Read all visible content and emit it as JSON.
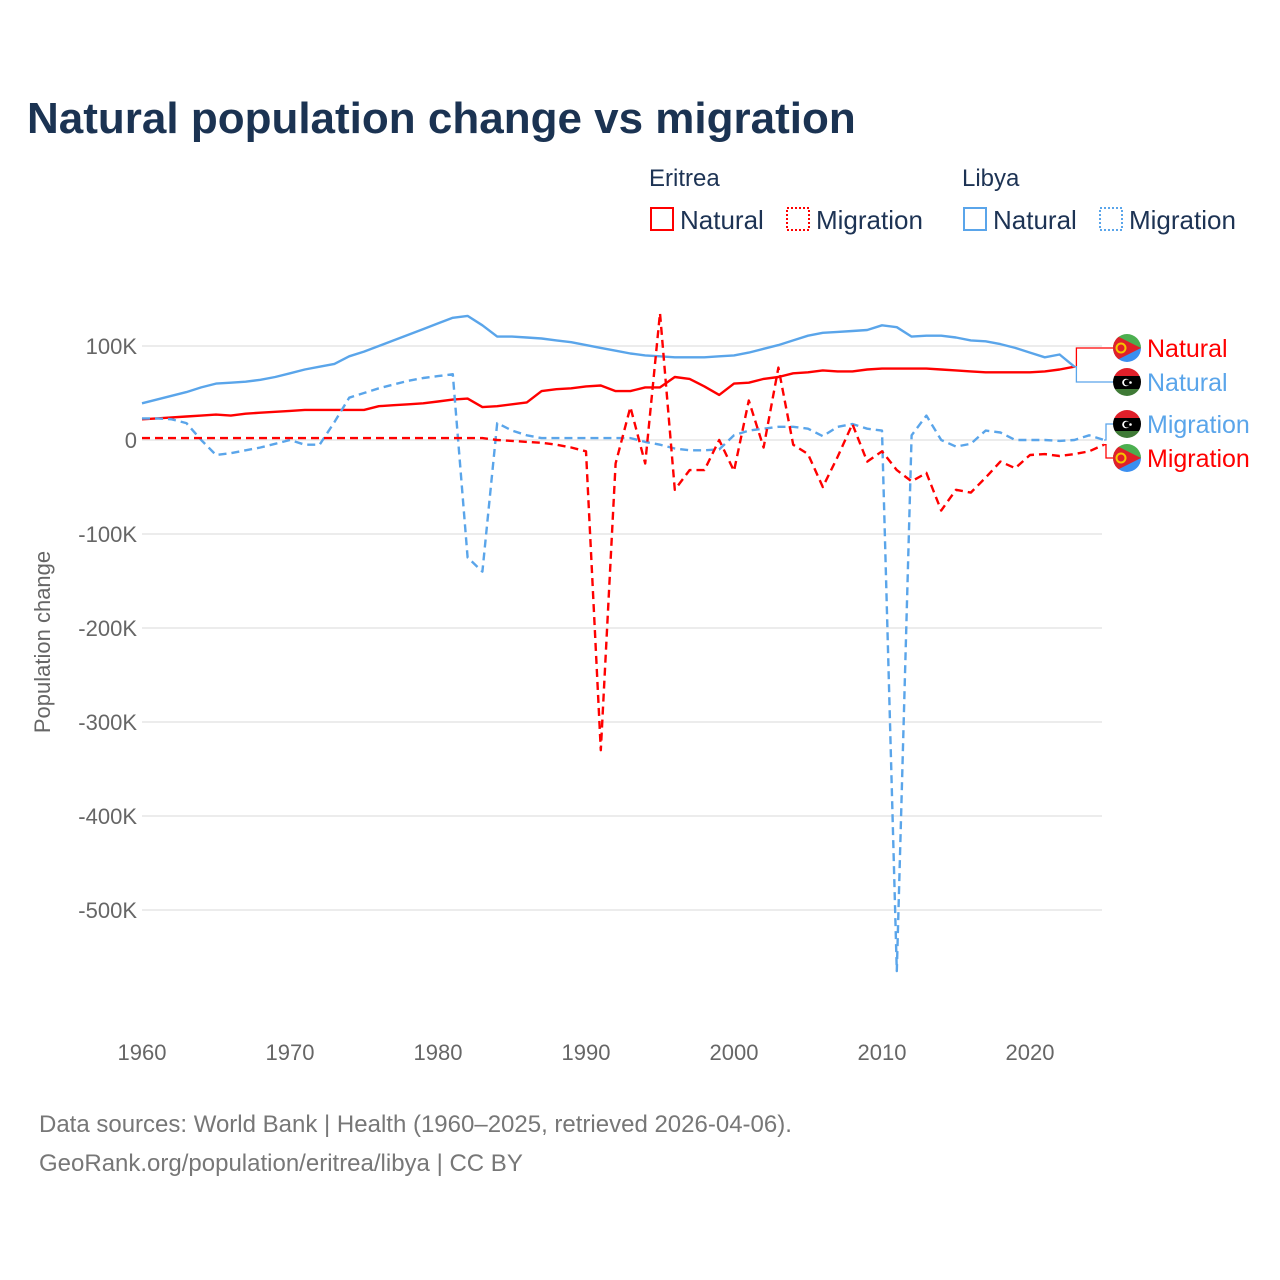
{
  "title": "Natural population change vs migration",
  "source_line1": "Data sources: World Bank | Health (1960–2025, retrieved 2026-04-06).",
  "source_line2": "GeoRank.org/population/eritrea/libya | CC BY",
  "legend": {
    "groups": [
      {
        "name": "Eritrea",
        "items": [
          "Natural",
          "Migration"
        ],
        "color": "#ff0000"
      },
      {
        "name": "Libya",
        "items": [
          "Natural",
          "Migration"
        ],
        "color": "#5aa5ea"
      }
    ]
  },
  "chart_data": {
    "type": "line",
    "title": "Natural population change vs migration",
    "xlabel": "",
    "ylabel": "Population change",
    "xlim": [
      1960,
      2025
    ],
    "ylim": [
      -606000,
      150000
    ],
    "grid": true,
    "legend_position": "top-right",
    "x_ticks": [
      1960,
      1970,
      1980,
      1990,
      2000,
      2010,
      2020
    ],
    "x_tick_labels": [
      "1960",
      "1970",
      "1980",
      "1990",
      "2000",
      "2010",
      "2020"
    ],
    "y_ticks": [
      100000,
      0,
      -100000,
      -200000,
      -300000,
      -400000,
      -500000
    ],
    "y_tick_labels": [
      "100K",
      "0",
      "-100K",
      "-200K",
      "-300K",
      "-400K",
      "-500K"
    ],
    "series": [
      {
        "name": "Eritrea Natural",
        "label": "Natural",
        "country": "Eritrea",
        "color": "#ff0000",
        "dash": false,
        "start_year": 1960,
        "values_k": [
          22,
          23,
          24,
          25,
          26,
          27,
          26,
          28,
          29,
          30,
          31,
          32,
          32,
          32,
          32,
          32,
          36,
          37,
          38,
          39,
          41,
          43,
          44,
          35,
          36,
          38,
          40,
          52,
          54,
          55,
          57,
          58,
          52,
          52,
          56,
          56,
          67,
          65,
          57,
          48,
          60,
          61,
          65,
          67,
          71,
          72,
          74,
          73,
          73,
          75,
          76,
          76,
          76,
          76,
          75,
          74,
          73,
          72,
          72,
          72,
          72,
          73,
          75,
          78
        ]
      },
      {
        "name": "Libya Natural",
        "label": "Natural",
        "country": "Libya",
        "color": "#5aa5ea",
        "dash": false,
        "start_year": 1960,
        "values_k": [
          39,
          43,
          47,
          51,
          56,
          60,
          61,
          62,
          64,
          67,
          71,
          75,
          78,
          81,
          89,
          94,
          100,
          106,
          112,
          118,
          124,
          130,
          132,
          122,
          110,
          110,
          109,
          108,
          106,
          104,
          101,
          98,
          95,
          92,
          90,
          89,
          88,
          88,
          88,
          89,
          90,
          93,
          97,
          101,
          106,
          111,
          114,
          115,
          116,
          117,
          122,
          120,
          110,
          111,
          111,
          109,
          106,
          105,
          102,
          98,
          93,
          88,
          91,
          78
        ]
      },
      {
        "name": "Libya Migration",
        "label": "Migration",
        "country": "Libya",
        "color": "#5aa5ea",
        "dash": true,
        "start_year": 1960,
        "values_k": [
          23,
          23,
          22,
          18,
          0,
          -16,
          -14,
          -11,
          -8,
          -4,
          0,
          -5,
          -5,
          19,
          45,
          50,
          55,
          59,
          63,
          66,
          68,
          70,
          -125,
          -140,
          18,
          10,
          5,
          2,
          2,
          2,
          2,
          2,
          2,
          2,
          -2,
          -5,
          -9,
          -11,
          -11,
          -10,
          5,
          10,
          12,
          14,
          14,
          12,
          4,
          14,
          17,
          12,
          10,
          -565,
          5,
          26,
          0,
          -7,
          -4,
          10,
          8,
          0,
          0,
          0,
          -1,
          0,
          5,
          0
        ]
      },
      {
        "name": "Eritrea Migration",
        "label": "Migration",
        "country": "Eritrea",
        "color": "#ff0000",
        "dash": true,
        "start_year": 1960,
        "values_k": [
          2,
          2,
          2,
          2,
          2,
          2,
          2,
          2,
          2,
          2,
          2,
          2,
          2,
          2,
          2,
          2,
          2,
          2,
          2,
          2,
          2,
          2,
          2,
          2,
          0,
          -1,
          -2,
          -3,
          -5,
          -8,
          -12,
          -330,
          -25,
          35,
          -25,
          135,
          -53,
          -32,
          -32,
          0,
          -33,
          42,
          -8,
          77,
          -5,
          -15,
          -50,
          -18,
          17,
          -23,
          -12,
          -32,
          -44,
          -35,
          -75,
          -53,
          -56,
          -40,
          -23,
          -30,
          -16,
          -15,
          -17,
          -15,
          -12,
          -5
        ]
      }
    ]
  }
}
